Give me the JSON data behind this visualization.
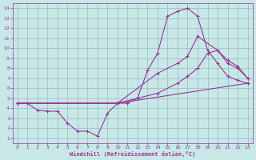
{
  "bg_color": "#c8e8e8",
  "line_color": "#993399",
  "grid_color": "#99bbbb",
  "xlabel": "Windchill (Refroidissement éolien,°C)",
  "xlim": [
    -0.5,
    23.5
  ],
  "ylim": [
    0.5,
    14.5
  ],
  "xticks": [
    0,
    1,
    2,
    3,
    4,
    5,
    6,
    7,
    8,
    9,
    10,
    11,
    12,
    13,
    14,
    15,
    16,
    17,
    18,
    19,
    20,
    21,
    22,
    23
  ],
  "yticks": [
    1,
    2,
    3,
    4,
    5,
    6,
    7,
    8,
    9,
    10,
    11,
    12,
    13,
    14
  ],
  "curves": [
    {
      "x": [
        0,
        1,
        2,
        3,
        4,
        5,
        6,
        7,
        8,
        9,
        10,
        11,
        12,
        13,
        14,
        15,
        16,
        17,
        18,
        19,
        20,
        21,
        22,
        23
      ],
      "y": [
        4.5,
        4.5,
        3.8,
        3.7,
        3.7,
        2.5,
        1.7,
        1.7,
        1.2,
        3.5,
        4.5,
        4.5,
        5.0,
        7.8,
        9.5,
        13.2,
        13.7,
        14.0,
        13.2,
        9.8,
        8.5,
        7.2,
        6.8,
        6.5
      ]
    },
    {
      "x": [
        0,
        10,
        14,
        16,
        17,
        18,
        20,
        21,
        22,
        23
      ],
      "y": [
        4.5,
        4.5,
        7.5,
        8.5,
        9.2,
        11.2,
        9.8,
        8.8,
        8.2,
        7.0
      ]
    },
    {
      "x": [
        0,
        10,
        14,
        16,
        17,
        18,
        19,
        20,
        21,
        22,
        23
      ],
      "y": [
        4.5,
        4.5,
        5.5,
        6.5,
        7.2,
        8.0,
        9.5,
        9.8,
        8.5,
        8.0,
        7.0
      ]
    },
    {
      "x": [
        0,
        10,
        23
      ],
      "y": [
        4.5,
        4.5,
        6.5
      ]
    }
  ],
  "marker": "+",
  "markersize": 3,
  "linewidth": 0.8,
  "markeredgewidth": 0.8,
  "tick_fontsize": 4.5,
  "xlabel_fontsize": 5.0
}
